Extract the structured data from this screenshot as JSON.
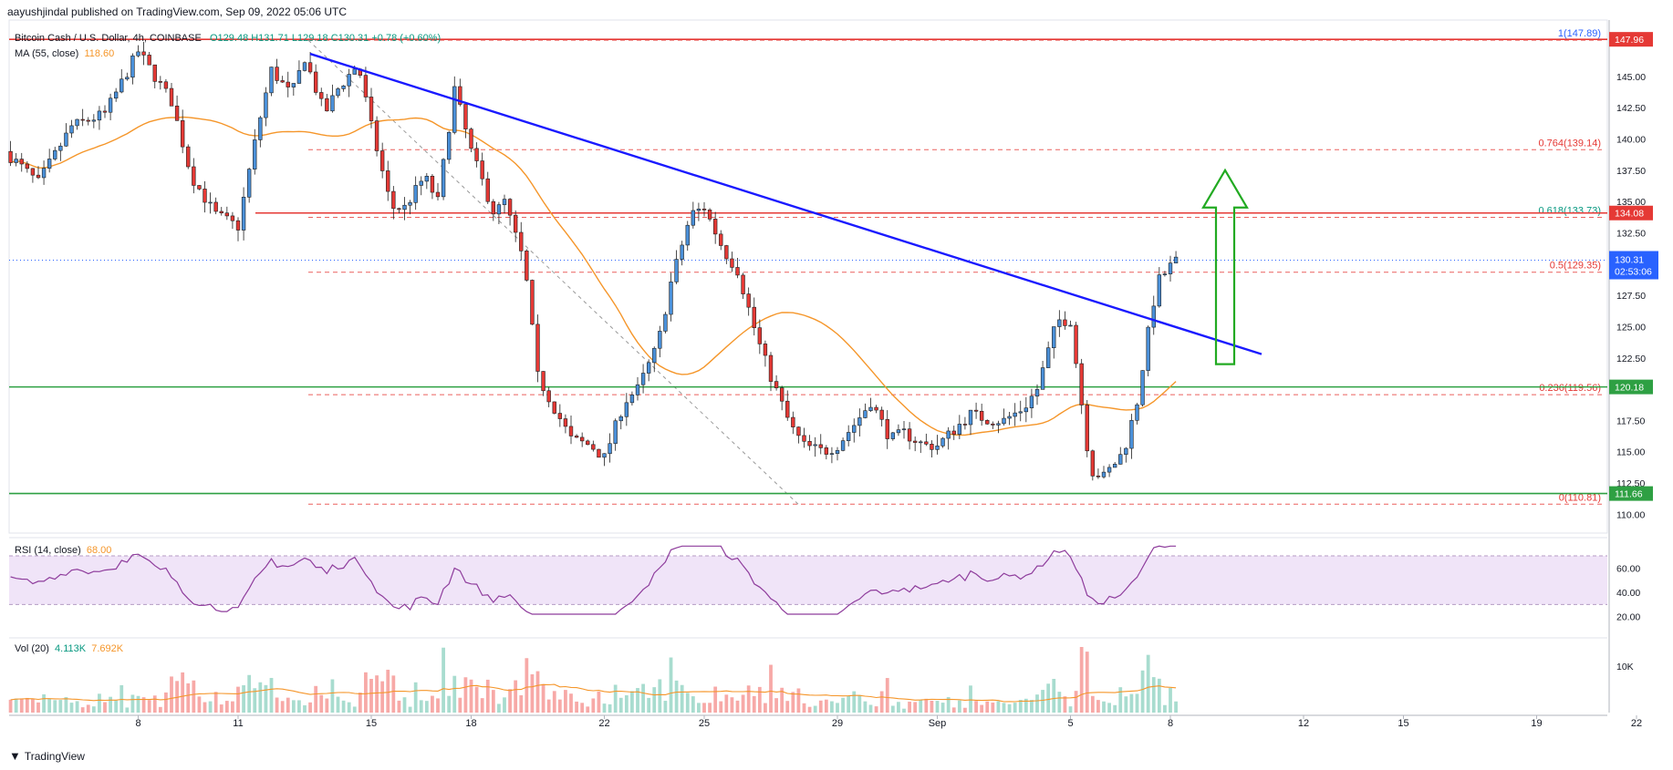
{
  "header": {
    "published": "aayushjindal published on TradingView.com, Sep 09, 2022 05:06 UTC"
  },
  "legend": {
    "symbol": "Bitcoin Cash / U.S. Dollar, 4h, COINBASE",
    "ohlc": "O129.48 H131.71 L129.18 C130.31 +0.78 (+0.60%)",
    "ma_label": "MA (55, close)",
    "ma_value": "118.60",
    "rsi_label": "RSI (14, close)",
    "rsi_value": "68.00",
    "vol_label": "Vol (20)",
    "vol_value1": "4.113K",
    "vol_value2": "7.692K"
  },
  "footer": {
    "brand": "TradingView"
  },
  "colors": {
    "up": "#26a69a",
    "down": "#ef5350",
    "up_vol": "#a8dccf",
    "down_vol": "#f7a9a7",
    "ma": "#f5962a",
    "trendline": "#1a1aff",
    "resistance": "#e53935",
    "support": "#2ea043",
    "fib": "#e53935",
    "arrow": "#22aa22",
    "rsi": "#8e3c9c"
  },
  "chart_data": {
    "type": "candlestick",
    "price_axis": {
      "unit": "USD",
      "range": [
        108.5,
        149.5
      ],
      "ticks": [
        110.0,
        112.5,
        115.0,
        117.5,
        120.0,
        122.5,
        125.0,
        127.5,
        130.0,
        132.5,
        135.0,
        137.5,
        140.0,
        142.5,
        145.0
      ]
    },
    "x_ticks": [
      "8",
      "11",
      "15",
      "18",
      "22",
      "25",
      "29",
      "Sep",
      "5",
      "8",
      "12",
      "15",
      "19",
      "22"
    ],
    "last_price": {
      "value": "130.31",
      "countdown": "02:53:06"
    },
    "levels": [
      {
        "kind": "resistance",
        "price": 147.96,
        "label": "147.96"
      },
      {
        "kind": "resistance",
        "price": 134.08,
        "label": "134.08"
      },
      {
        "kind": "support",
        "price": 120.18,
        "label": "120.18"
      },
      {
        "kind": "support",
        "price": 111.66,
        "label": "111.66"
      }
    ],
    "fibonacci": [
      {
        "ratio": "1",
        "price": 147.89,
        "label": "1(147.89)"
      },
      {
        "ratio": "0.764",
        "price": 139.14,
        "label": "0.764(139.14)"
      },
      {
        "ratio": "0.618",
        "price": 133.73,
        "label": "0.618(133.73)"
      },
      {
        "ratio": "0.5",
        "price": 129.35,
        "label": "0.5(129.35)"
      },
      {
        "ratio": "0.236",
        "price": 119.56,
        "label": "0.236(119.56)"
      },
      {
        "ratio": "0",
        "price": 110.81,
        "label": "0(110.81)"
      }
    ],
    "trendline": {
      "from": [
        "Aug 14",
        146.8
      ],
      "to": [
        "Sep 11",
        122.8
      ]
    },
    "arrow": {
      "direction": "up",
      "price_from": 122,
      "price_to": 137.5
    },
    "rsi": {
      "ticks": [
        "60.00",
        "40.00",
        "20.00"
      ],
      "band": [
        30,
        70
      ]
    },
    "volume": {
      "ticks": [
        "10K"
      ]
    }
  }
}
